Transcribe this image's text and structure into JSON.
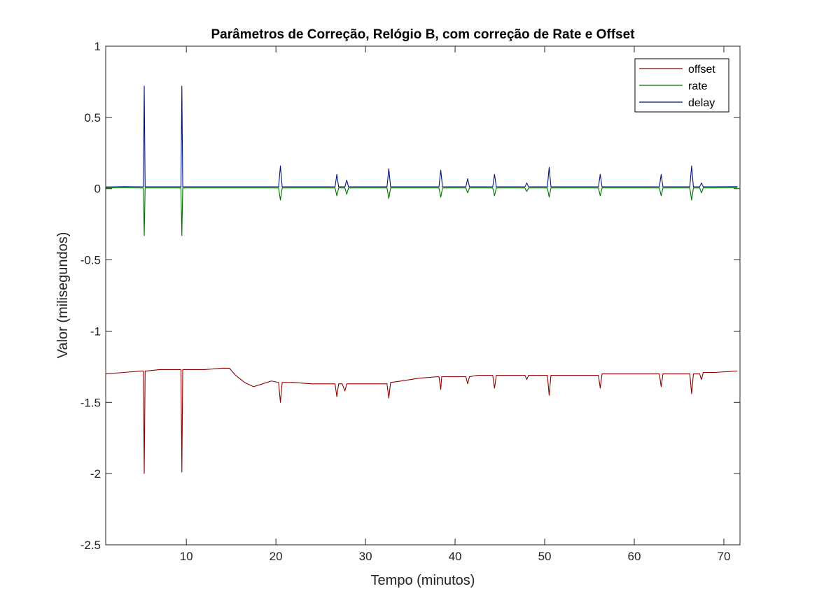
{
  "chart_data": {
    "type": "line",
    "title": "Parâmetros de Correção, Relógio B, com correção de Rate e Offset",
    "xlabel": "Tempo (minutos)",
    "ylabel": "Valor (milisegundos)",
    "xlim": [
      1,
      71.8
    ],
    "ylim": [
      -2.5,
      1
    ],
    "xticks": [
      10,
      20,
      30,
      40,
      50,
      60,
      70
    ],
    "xtick_labels": [
      "10",
      "20",
      "30",
      "40",
      "50",
      "60",
      "70"
    ],
    "yticks": [
      1,
      0.5,
      0,
      -0.5,
      -1,
      -1.5,
      -2,
      -2.5
    ],
    "ytick_labels": [
      "1",
      "0.5",
      "0",
      "-0.5",
      "-1",
      "-1.5",
      "-2",
      "-2.5"
    ],
    "grid": false,
    "legend_position": "top-right",
    "series": [
      {
        "name": "offset",
        "color": "#8b0000",
        "x": [
          1.0,
          3.0,
          5.0,
          5.2,
          5.3,
          5.4,
          5.6,
          7.0,
          9.0,
          9.4,
          9.5,
          9.6,
          10.0,
          12.0,
          14.0,
          14.8,
          15.5,
          16.5,
          17.5,
          18.5,
          19.5,
          20.3,
          20.5,
          20.7,
          22.0,
          24.0,
          26.0,
          26.6,
          26.8,
          27.0,
          27.4,
          27.7,
          27.9,
          28.2,
          30.0,
          32.4,
          32.6,
          32.8,
          34.0,
          36.0,
          38.0,
          38.2,
          38.4,
          38.5,
          38.7,
          40.0,
          41.2,
          41.4,
          41.6,
          42.5,
          44.2,
          44.4,
          44.6,
          46.0,
          47.8,
          48.0,
          48.2,
          49.0,
          50.3,
          50.5,
          50.7,
          52.0,
          54.0,
          56.0,
          56.2,
          56.4,
          58.0,
          60.0,
          62.0,
          62.8,
          63.0,
          63.2,
          64.0,
          66.2,
          66.4,
          66.6,
          67.3,
          67.5,
          67.7,
          69.0,
          71.5
        ],
        "y": [
          -1.3,
          -1.29,
          -1.28,
          -1.28,
          -2.0,
          -1.28,
          -1.28,
          -1.27,
          -1.27,
          -1.27,
          -1.99,
          -1.27,
          -1.27,
          -1.27,
          -1.26,
          -1.26,
          -1.31,
          -1.36,
          -1.39,
          -1.37,
          -1.35,
          -1.36,
          -1.5,
          -1.36,
          -1.36,
          -1.37,
          -1.37,
          -1.37,
          -1.46,
          -1.37,
          -1.37,
          -1.42,
          -1.37,
          -1.37,
          -1.37,
          -1.37,
          -1.47,
          -1.36,
          -1.35,
          -1.33,
          -1.32,
          -1.32,
          -1.41,
          -1.32,
          -1.32,
          -1.32,
          -1.32,
          -1.37,
          -1.32,
          -1.31,
          -1.31,
          -1.4,
          -1.31,
          -1.31,
          -1.31,
          -1.34,
          -1.31,
          -1.31,
          -1.31,
          -1.45,
          -1.31,
          -1.31,
          -1.31,
          -1.31,
          -1.4,
          -1.3,
          -1.3,
          -1.3,
          -1.3,
          -1.3,
          -1.39,
          -1.3,
          -1.3,
          -1.3,
          -1.44,
          -1.3,
          -1.3,
          -1.34,
          -1.29,
          -1.29,
          -1.28
        ]
      },
      {
        "name": "rate",
        "color": "#007000",
        "x": [
          1.0,
          3.0,
          5.0,
          5.2,
          5.3,
          5.4,
          5.6,
          7.0,
          9.0,
          9.4,
          9.5,
          9.6,
          10.0,
          14.0,
          20.3,
          20.5,
          20.7,
          26.6,
          26.8,
          27.0,
          27.7,
          27.9,
          28.1,
          32.4,
          32.6,
          32.8,
          38.2,
          38.4,
          38.6,
          41.2,
          41.4,
          41.6,
          44.2,
          44.4,
          44.6,
          47.8,
          48.0,
          48.2,
          50.3,
          50.5,
          50.7,
          56.0,
          56.2,
          56.4,
          62.8,
          63.0,
          63.2,
          66.2,
          66.4,
          66.6,
          67.3,
          67.5,
          67.7,
          71.5
        ],
        "y": [
          0.005,
          0.006,
          0.005,
          0.005,
          -0.33,
          0.005,
          0.005,
          0.005,
          0.005,
          0.005,
          -0.33,
          0.005,
          0.005,
          0.005,
          0.005,
          -0.08,
          0.005,
          0.005,
          -0.05,
          0.005,
          0.005,
          -0.04,
          0.005,
          0.005,
          -0.07,
          0.005,
          0.005,
          -0.06,
          0.005,
          0.005,
          -0.03,
          0.005,
          0.005,
          -0.05,
          0.005,
          0.005,
          -0.02,
          0.005,
          0.005,
          -0.06,
          0.005,
          0.005,
          -0.05,
          0.005,
          0.005,
          -0.05,
          0.005,
          0.005,
          -0.08,
          0.005,
          0.005,
          -0.03,
          0.005,
          0.006
        ]
      },
      {
        "name": "delay",
        "color": "#00147f",
        "x": [
          1.0,
          3.0,
          5.0,
          5.2,
          5.3,
          5.4,
          5.6,
          7.0,
          9.0,
          9.4,
          9.5,
          9.6,
          10.0,
          14.0,
          20.3,
          20.5,
          20.7,
          26.6,
          26.8,
          27.0,
          27.7,
          27.9,
          28.1,
          32.4,
          32.6,
          32.8,
          38.2,
          38.4,
          38.6,
          41.2,
          41.4,
          41.6,
          44.2,
          44.4,
          44.6,
          47.8,
          48.0,
          48.2,
          50.3,
          50.5,
          50.7,
          56.0,
          56.2,
          56.4,
          62.8,
          63.0,
          63.2,
          66.2,
          66.4,
          66.6,
          67.3,
          67.5,
          67.7,
          71.5
        ],
        "y": [
          0.012,
          0.014,
          0.013,
          0.013,
          0.72,
          0.013,
          0.013,
          0.013,
          0.013,
          0.013,
          0.72,
          0.013,
          0.013,
          0.013,
          0.013,
          0.16,
          0.013,
          0.013,
          0.1,
          0.013,
          0.013,
          0.06,
          0.013,
          0.013,
          0.14,
          0.013,
          0.013,
          0.13,
          0.013,
          0.013,
          0.07,
          0.013,
          0.013,
          0.1,
          0.013,
          0.013,
          0.04,
          0.013,
          0.013,
          0.15,
          0.013,
          0.013,
          0.1,
          0.013,
          0.013,
          0.1,
          0.013,
          0.013,
          0.16,
          0.013,
          0.013,
          0.04,
          0.013,
          0.014
        ]
      }
    ]
  }
}
